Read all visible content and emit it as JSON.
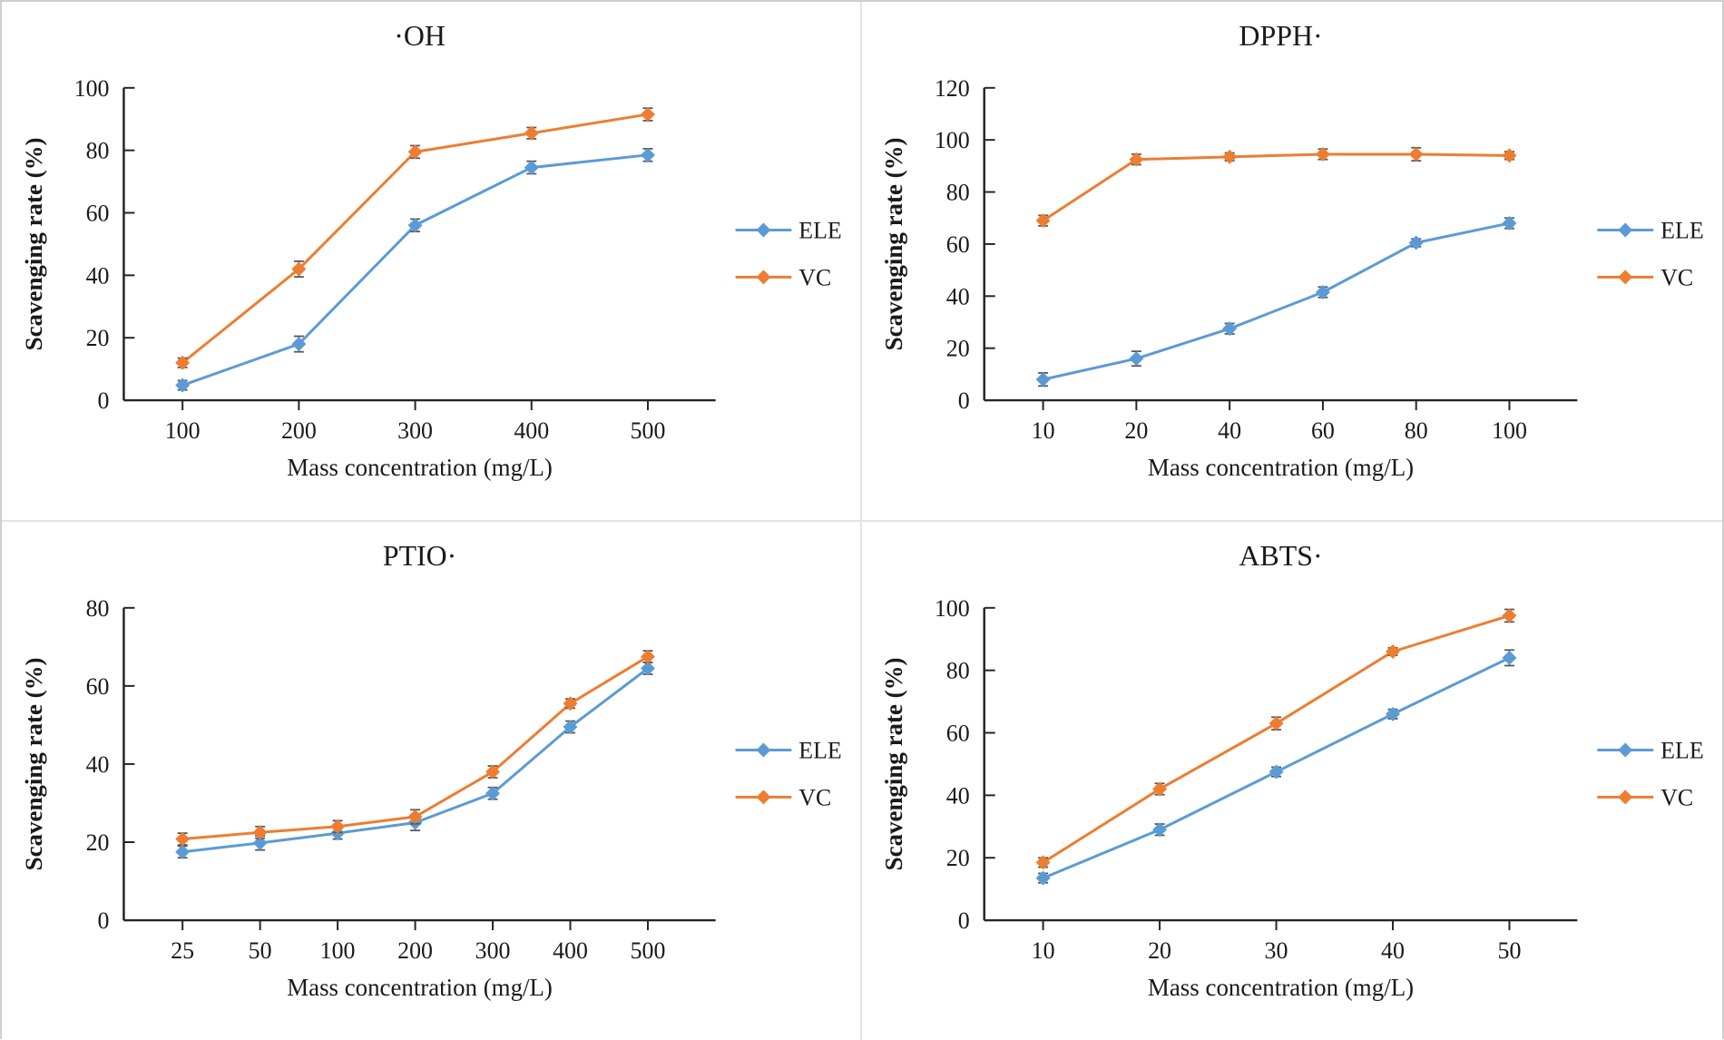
{
  "figure": {
    "background": "#ffffff",
    "outer_border_color": "#cfcfcf",
    "divider_color": "#e3e3e3"
  },
  "colors": {
    "ele_series": "#5B9BD5",
    "vc_series": "#ED7D31",
    "error_bar": "#595959",
    "axis": "#262626",
    "text": "#1a1a1a"
  },
  "legend": {
    "position": "right",
    "entries": [
      "ELE",
      "VC"
    ]
  },
  "chart_data": [
    {
      "id": "oh",
      "type": "line",
      "title": "·OH",
      "xlabel": "Mass concentration (mg/L)",
      "ylabel": "Scavenging rate (%)",
      "categories": [
        "100",
        "200",
        "300",
        "400",
        "500"
      ],
      "ylim": [
        0,
        100
      ],
      "yticks": [
        0,
        20,
        40,
        60,
        80,
        100
      ],
      "grid": false,
      "legend_position": "right",
      "series": [
        {
          "name": "ELE",
          "color_key": "ele_series",
          "values": [
            4.8,
            18,
            56,
            74.5,
            78.5
          ],
          "errors": [
            1.5,
            2.5,
            2,
            2,
            2
          ]
        },
        {
          "name": "VC",
          "color_key": "vc_series",
          "values": [
            12,
            42,
            79.5,
            85.5,
            91.5
          ],
          "errors": [
            1.5,
            2.5,
            2,
            1.8,
            2
          ]
        }
      ]
    },
    {
      "id": "dpph",
      "type": "line",
      "title": "DPPH·",
      "xlabel": "Mass concentration (mg/L)",
      "ylabel": "Scavenging rate (%)",
      "categories": [
        "10",
        "20",
        "40",
        "60",
        "80",
        "100"
      ],
      "ylim": [
        0,
        120
      ],
      "yticks": [
        0,
        20,
        40,
        60,
        80,
        100,
        120
      ],
      "grid": false,
      "legend_position": "right",
      "series": [
        {
          "name": "ELE",
          "color_key": "ele_series",
          "values": [
            8,
            16,
            27.5,
            41.5,
            60.5,
            68
          ],
          "errors": [
            2.5,
            2.8,
            2,
            2,
            1.5,
            2
          ]
        },
        {
          "name": "VC",
          "color_key": "vc_series",
          "values": [
            69,
            92.5,
            93.5,
            94.5,
            94.5,
            94
          ],
          "errors": [
            2,
            2,
            1.5,
            2,
            2.5,
            1.5
          ]
        }
      ]
    },
    {
      "id": "ptio",
      "type": "line",
      "title": "PTIO·",
      "xlabel": "Mass concentration (mg/L)",
      "ylabel": "Scavenging rate (%)",
      "categories": [
        "25",
        "50",
        "100",
        "200",
        "300",
        "400",
        "500"
      ],
      "ylim": [
        0,
        80
      ],
      "yticks": [
        0,
        20,
        40,
        60,
        80
      ],
      "grid": false,
      "legend_position": "right",
      "series": [
        {
          "name": "ELE",
          "color_key": "ele_series",
          "values": [
            17.5,
            19.8,
            22.3,
            25,
            32.5,
            49.5,
            64.5
          ],
          "errors": [
            1.5,
            1.8,
            1.5,
            2,
            1.5,
            1.5,
            1.5
          ]
        },
        {
          "name": "VC",
          "color_key": "vc_series",
          "values": [
            20.8,
            22.5,
            24,
            26.5,
            38,
            55.5,
            67.5
          ],
          "errors": [
            1.5,
            1.5,
            1.5,
            1.8,
            1.5,
            1.2,
            1.5
          ]
        }
      ]
    },
    {
      "id": "abts",
      "type": "line",
      "title": "ABTS·",
      "xlabel": "Mass concentration (mg/L)",
      "ylabel": "Scavenging rate (%)",
      "categories": [
        "10",
        "20",
        "30",
        "40",
        "50"
      ],
      "ylim": [
        0,
        100
      ],
      "yticks": [
        0,
        20,
        40,
        60,
        80,
        100
      ],
      "grid": false,
      "legend_position": "right",
      "series": [
        {
          "name": "ELE",
          "color_key": "ele_series",
          "values": [
            13.5,
            29,
            47.5,
            66,
            84
          ],
          "errors": [
            1.5,
            1.8,
            1.5,
            1.5,
            2.5
          ]
        },
        {
          "name": "VC",
          "color_key": "vc_series",
          "values": [
            18.5,
            42,
            63,
            86,
            97.5
          ],
          "errors": [
            1.5,
            1.8,
            2,
            1.2,
            2
          ]
        }
      ]
    }
  ]
}
